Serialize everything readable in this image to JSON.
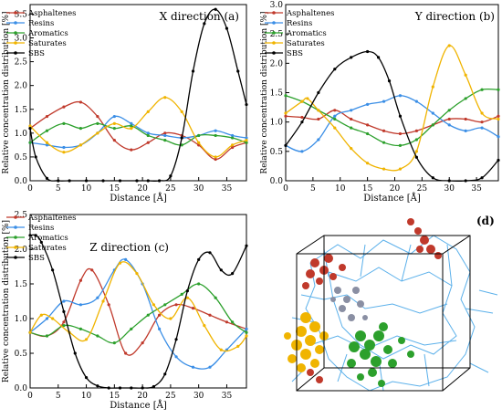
{
  "figure": {
    "panel_d_label": "(d)"
  },
  "chart_data": [
    {
      "type": "line",
      "panel": "(a)",
      "title": "X direction (a)",
      "xlabel": "Distance [Å]",
      "ylabel": "Relative concentration distribution [%]",
      "xlim": [
        0,
        38.5
      ],
      "ylim": [
        0,
        3.7
      ],
      "xticks": [
        0,
        5,
        10,
        15,
        20,
        25,
        30,
        35
      ],
      "yticks": [
        0.0,
        0.5,
        1.0,
        1.5,
        2.0,
        2.5,
        3.0,
        3.5
      ],
      "legend": "top-left",
      "series": [
        {
          "name": "Asphaltenes",
          "color": "#c0392b",
          "x": [
            0,
            3,
            6,
            9,
            12,
            15,
            18,
            21,
            24,
            27,
            30,
            33,
            36,
            38.5
          ],
          "y": [
            1.1,
            1.35,
            1.55,
            1.65,
            1.35,
            0.85,
            0.65,
            0.8,
            1.0,
            0.95,
            0.75,
            0.45,
            0.7,
            0.8
          ]
        },
        {
          "name": "Resins",
          "color": "#3a8ee6",
          "x": [
            0,
            3,
            6,
            9,
            12,
            15,
            18,
            21,
            24,
            27,
            30,
            33,
            36,
            38.5
          ],
          "y": [
            0.8,
            0.75,
            0.7,
            0.75,
            1.0,
            1.35,
            1.2,
            1.0,
            0.95,
            0.9,
            0.95,
            1.05,
            0.95,
            0.9
          ]
        },
        {
          "name": "Aromatics",
          "color": "#2ca02c",
          "x": [
            0,
            3,
            6,
            9,
            12,
            15,
            18,
            21,
            24,
            27,
            30,
            33,
            36,
            38.5
          ],
          "y": [
            0.8,
            1.05,
            1.2,
            1.1,
            1.2,
            1.1,
            1.15,
            0.95,
            0.85,
            0.75,
            0.95,
            0.95,
            0.9,
            0.8
          ]
        },
        {
          "name": "Saturates",
          "color": "#f0b400",
          "x": [
            0,
            3,
            6,
            9,
            12,
            15,
            18,
            21,
            24,
            27,
            30,
            33,
            36,
            38.5
          ],
          "y": [
            1.15,
            0.8,
            0.6,
            0.75,
            1.0,
            1.2,
            1.1,
            1.45,
            1.75,
            1.45,
            0.8,
            0.5,
            0.75,
            0.85
          ]
        },
        {
          "name": "SBS",
          "color": "#000000",
          "x": [
            0,
            1,
            3,
            5,
            7,
            10,
            13,
            16,
            19,
            21,
            23,
            25,
            27,
            29,
            31,
            33,
            35,
            37,
            38.5
          ],
          "y": [
            1.1,
            0.5,
            0.05,
            0.0,
            0.0,
            0.0,
            0.0,
            0.0,
            0.0,
            0.0,
            0.0,
            0.1,
            0.9,
            2.3,
            3.3,
            3.6,
            3.2,
            2.3,
            1.6
          ]
        }
      ]
    },
    {
      "type": "line",
      "panel": "(b)",
      "title": "Y direction (b)",
      "xlabel": "Distance [Å]",
      "ylabel": "Relative concentration distribution [%]",
      "xlim": [
        0,
        39
      ],
      "ylim": [
        0,
        3.0
      ],
      "xticks": [
        0,
        5,
        10,
        15,
        20,
        25,
        30,
        35
      ],
      "yticks": [
        0.0,
        0.5,
        1.0,
        1.5,
        2.0,
        2.5,
        3.0
      ],
      "legend": "top-left",
      "series": [
        {
          "name": "Asphaltenes",
          "color": "#c0392b",
          "x": [
            0,
            3,
            6,
            9,
            12,
            15,
            18,
            21,
            24,
            27,
            30,
            33,
            36,
            39
          ],
          "y": [
            1.1,
            1.08,
            1.05,
            1.2,
            1.05,
            0.95,
            0.85,
            0.8,
            0.85,
            0.95,
            1.05,
            1.05,
            1.0,
            1.1
          ]
        },
        {
          "name": "Resins",
          "color": "#3a8ee6",
          "x": [
            0,
            3,
            6,
            9,
            12,
            15,
            18,
            21,
            24,
            27,
            30,
            33,
            36,
            39
          ],
          "y": [
            0.6,
            0.5,
            0.7,
            1.1,
            1.2,
            1.3,
            1.35,
            1.45,
            1.35,
            1.15,
            0.95,
            0.85,
            0.9,
            0.75
          ]
        },
        {
          "name": "Aromatics",
          "color": "#2ca02c",
          "x": [
            0,
            3,
            6,
            9,
            12,
            15,
            18,
            21,
            24,
            27,
            30,
            33,
            36,
            39
          ],
          "y": [
            1.45,
            1.35,
            1.2,
            1.05,
            0.9,
            0.8,
            0.65,
            0.6,
            0.7,
            0.95,
            1.2,
            1.4,
            1.55,
            1.55
          ]
        },
        {
          "name": "Saturates",
          "color": "#f0b400",
          "x": [
            0,
            3,
            4,
            6,
            9,
            12,
            15,
            18,
            21,
            24,
            27,
            30,
            33,
            36,
            39
          ],
          "y": [
            1.15,
            1.35,
            1.4,
            1.2,
            0.9,
            0.55,
            0.3,
            0.2,
            0.2,
            0.5,
            1.6,
            2.3,
            1.8,
            1.15,
            1.05
          ]
        },
        {
          "name": "SBS",
          "color": "#000000",
          "x": [
            0,
            3,
            6,
            9,
            12,
            15,
            17,
            19,
            21,
            24,
            27,
            30,
            33,
            36,
            39
          ],
          "y": [
            0.6,
            1.0,
            1.5,
            1.9,
            2.1,
            2.2,
            2.1,
            1.7,
            1.1,
            0.4,
            0.05,
            0.0,
            0.0,
            0.05,
            0.35
          ]
        }
      ]
    },
    {
      "type": "line",
      "panel": "(c)",
      "title": "Z direction (c)",
      "xlabel": "Distance [Å]",
      "ylabel": "Relative concentration distribution [%]",
      "xlim": [
        0,
        38.5
      ],
      "ylim": [
        0,
        2.5
      ],
      "xticks": [
        0,
        5,
        10,
        15,
        20,
        25,
        30,
        35
      ],
      "yticks": [
        0.0,
        0.5,
        1.0,
        1.5,
        2.0,
        2.5
      ],
      "legend": "top-left",
      "series": [
        {
          "name": "Asphaltenes",
          "color": "#c0392b",
          "x": [
            0,
            3,
            6,
            9,
            11,
            14,
            17,
            20,
            23,
            26,
            29,
            32,
            35,
            38.5
          ],
          "y": [
            0.8,
            0.75,
            0.95,
            1.55,
            1.7,
            1.2,
            0.5,
            0.65,
            1.05,
            1.2,
            1.15,
            1.05,
            0.95,
            0.85
          ]
        },
        {
          "name": "Resins",
          "color": "#3a8ee6",
          "x": [
            0,
            3,
            6,
            9,
            12,
            15,
            17,
            20,
            23,
            26,
            29,
            32,
            35,
            38.5
          ],
          "y": [
            0.8,
            1.0,
            1.25,
            1.2,
            1.3,
            1.7,
            1.85,
            1.5,
            0.85,
            0.45,
            0.3,
            0.3,
            0.55,
            0.85
          ]
        },
        {
          "name": "Aromatics",
          "color": "#2ca02c",
          "x": [
            0,
            3,
            6,
            9,
            12,
            15,
            18,
            21,
            24,
            27,
            30,
            33,
            36,
            38.5
          ],
          "y": [
            0.8,
            0.75,
            0.9,
            0.85,
            0.75,
            0.65,
            0.85,
            1.05,
            1.2,
            1.35,
            1.5,
            1.3,
            0.95,
            0.8
          ]
        },
        {
          "name": "Saturates",
          "color": "#f0b400",
          "x": [
            0,
            2,
            4,
            7,
            10,
            13,
            16,
            19,
            22,
            25,
            28,
            31,
            34,
            37,
            38.5
          ],
          "y": [
            0.8,
            1.05,
            1.0,
            0.8,
            0.7,
            1.25,
            1.8,
            1.65,
            1.2,
            1.0,
            1.3,
            0.9,
            0.55,
            0.6,
            0.75
          ]
        },
        {
          "name": "SBS",
          "color": "#000000",
          "x": [
            0,
            1,
            2,
            4,
            6,
            8,
            10,
            12,
            14,
            16,
            18,
            20,
            22,
            24,
            26,
            28,
            30,
            32,
            34,
            36,
            38.5
          ],
          "y": [
            2.2,
            2.2,
            2.1,
            1.7,
            1.1,
            0.5,
            0.15,
            0.03,
            0.0,
            0.0,
            0.0,
            0.0,
            0.02,
            0.2,
            0.7,
            1.4,
            1.85,
            1.95,
            1.7,
            1.65,
            2.05
          ]
        }
      ]
    }
  ]
}
